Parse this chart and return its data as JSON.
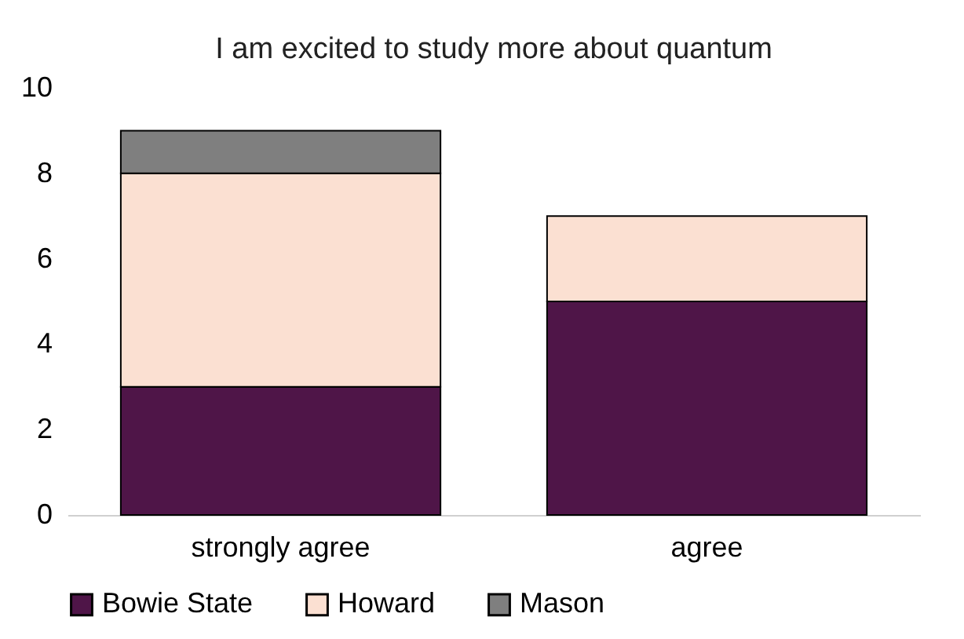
{
  "chart_data": {
    "type": "bar",
    "title": "I am excited to study more about quantum",
    "categories": [
      "strongly agree",
      "agree"
    ],
    "stacked": true,
    "series": [
      {
        "name": "Bowie State",
        "color": "#4f1548",
        "values": [
          3,
          5
        ]
      },
      {
        "name": "Howard",
        "color": "#fbe0d2",
        "values": [
          5,
          2
        ]
      },
      {
        "name": "Mason",
        "color": "#7f7f7f",
        "values": [
          1,
          null
        ]
      }
    ],
    "ylim": [
      0,
      10
    ],
    "yticks": [
      0,
      2,
      4,
      6,
      8,
      10
    ],
    "grid": false,
    "legend": "bottom"
  }
}
